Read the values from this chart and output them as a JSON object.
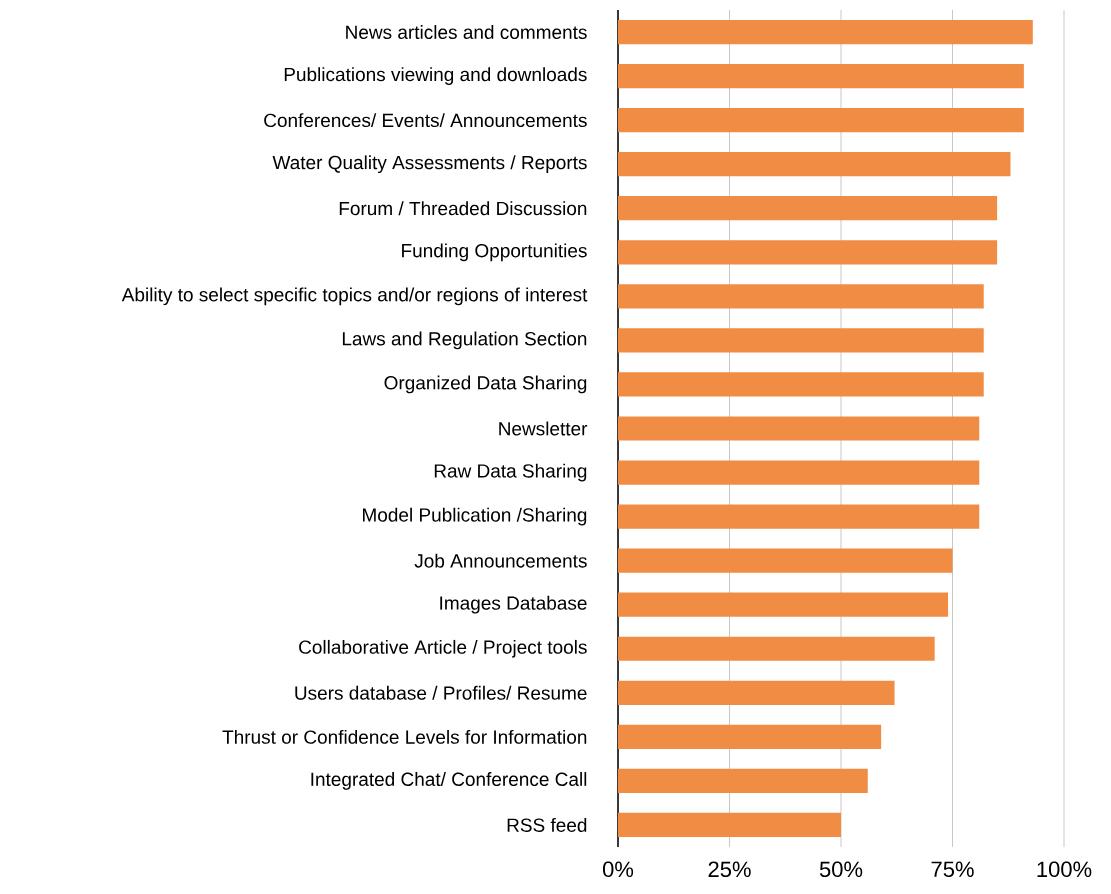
{
  "chart_data": {
    "type": "bar",
    "orientation": "horizontal",
    "categories": [
      "News articles and comments",
      "Publications viewing and downloads",
      "Conferences/ Events/ Announcements",
      "Water Quality Assessments / Reports",
      "Forum / Threaded Discussion",
      "Funding Opportunities",
      "Ability to select specific topics and/or regions of interest",
      "Laws and Regulation Section",
      "Organized Data Sharing",
      "Newsletter",
      "Raw Data Sharing",
      "Model Publication /Sharing",
      "Job Announcements",
      "Images Database",
      "Collaborative Article / Project tools",
      "Users database / Profiles/ Resume",
      "Thrust or Confidence Levels for Information",
      "Integrated Chat/ Conference Call",
      "RSS feed"
    ],
    "values": [
      93,
      91,
      91,
      88,
      85,
      85,
      82,
      82,
      82,
      81,
      81,
      81,
      75,
      74,
      71,
      62,
      59,
      56,
      50
    ],
    "color": "#f08c44",
    "xlim": [
      0,
      100
    ],
    "xticks": [
      {
        "value": 0,
        "label": "0%"
      },
      {
        "value": 25,
        "label": "25%"
      },
      {
        "value": 50,
        "label": "50%"
      },
      {
        "value": 75,
        "label": "75%"
      },
      {
        "value": 100,
        "label": "100%"
      }
    ],
    "grid": "x"
  }
}
